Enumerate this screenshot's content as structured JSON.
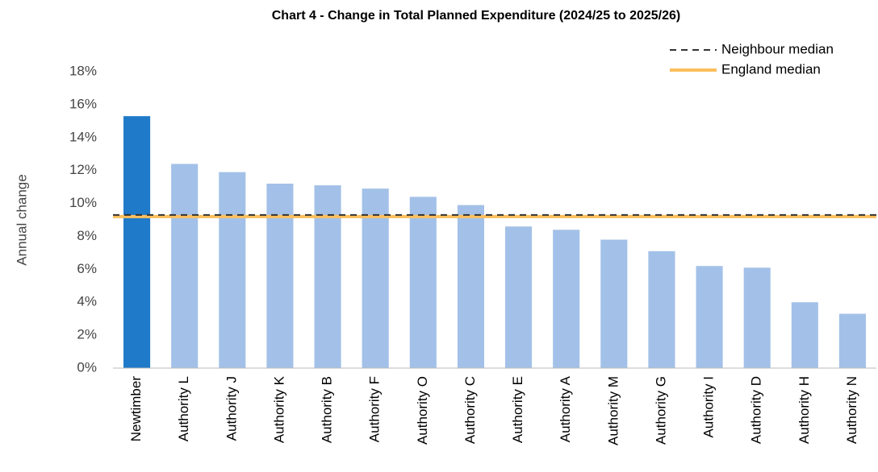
{
  "chart_data": {
    "type": "bar",
    "title": "Chart 4 - Change in Total Planned Expenditure (2024/25 to 2025/26)",
    "y_label": "Annual change",
    "categories": [
      "Newtimber",
      "Authority L",
      "Authority J",
      "Authority K",
      "Authority B",
      "Authority F",
      "Authority O",
      "Authority C",
      "Authority E",
      "Authority A",
      "Authority M",
      "Authority G",
      "Authority I",
      "Authority D",
      "Authority H",
      "Authority N"
    ],
    "values": [
      15.3,
      12.4,
      11.9,
      11.2,
      11.1,
      10.9,
      10.4,
      9.9,
      8.6,
      8.4,
      7.8,
      7.1,
      6.2,
      6.1,
      4.0,
      3.3
    ],
    "colors": [
      "#1f7ac9",
      "#a3c1e8",
      "#a3c1e8",
      "#a3c1e8",
      "#a3c1e8",
      "#a3c1e8",
      "#a3c1e8",
      "#a3c1e8",
      "#a3c1e8",
      "#a3c1e8",
      "#a3c1e8",
      "#a3c1e8",
      "#a3c1e8",
      "#a3c1e8",
      "#a3c1e8",
      "#a3c1e8"
    ],
    "ylim": [
      0,
      18
    ],
    "yticks": [
      {
        "value": 0,
        "label": "0%"
      },
      {
        "value": 2,
        "label": "2%"
      },
      {
        "value": 4,
        "label": "4%"
      },
      {
        "value": 6,
        "label": "6%"
      },
      {
        "value": 8,
        "label": "8%"
      },
      {
        "value": 10,
        "label": "10%"
      },
      {
        "value": 12,
        "label": "12%"
      },
      {
        "value": 14,
        "label": "14%"
      },
      {
        "value": 16,
        "label": "16%"
      },
      {
        "value": 18,
        "label": "18%"
      }
    ],
    "reference_lines": [
      {
        "name": "Neighbour median",
        "value": 9.3,
        "color": "#333333",
        "style": "dashed"
      },
      {
        "name": "England median",
        "value": 9.2,
        "color": "#fbbf5c",
        "style": "solid"
      }
    ],
    "grid": false,
    "legend": "top-right"
  }
}
